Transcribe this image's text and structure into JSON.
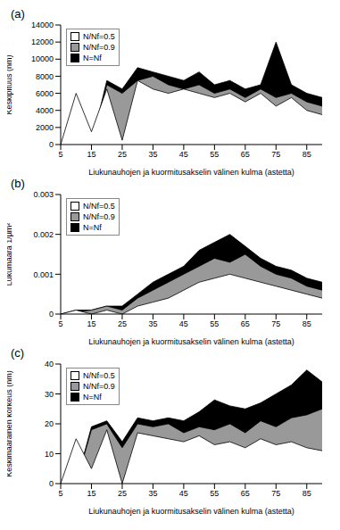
{
  "chart_data": [
    {
      "type": "area",
      "title": "(a)",
      "x_label": "Liukunauhojen  ja kuormitusakselin  välinen kulma (astetta)",
      "y_label": "Keskipituus (nm)",
      "x": [
        5,
        10,
        15,
        20,
        25,
        30,
        35,
        40,
        45,
        50,
        55,
        60,
        65,
        70,
        75,
        80,
        85,
        90
      ],
      "xlim": [
        5,
        90
      ],
      "xticks": [
        5,
        15,
        25,
        35,
        45,
        55,
        65,
        75,
        85
      ],
      "ylim": [
        0,
        14000
      ],
      "yticks": [
        0,
        2000,
        4000,
        6000,
        8000,
        10000,
        12000,
        14000
      ],
      "legend": "top-left",
      "series": [
        {
          "name": "N/Nf=0.5",
          "color": "#ffffff",
          "values": [
            0,
            6000,
            1500,
            6500,
            500,
            7500,
            6500,
            6000,
            6500,
            6000,
            5500,
            6000,
            5000,
            6000,
            4500,
            5500,
            4000,
            3500
          ]
        },
        {
          "name": "N/Nf=0.9",
          "color": "#999999",
          "values": [
            0,
            0,
            0,
            7000,
            6000,
            7500,
            8000,
            7000,
            6500,
            7000,
            6000,
            6500,
            5500,
            6500,
            5500,
            6000,
            5000,
            4500
          ]
        },
        {
          "name": "N=Nf",
          "color": "#000000",
          "values": [
            0,
            0,
            0,
            7500,
            6500,
            9000,
            8500,
            8000,
            7500,
            8500,
            7000,
            7500,
            6500,
            7000,
            12000,
            7000,
            6000,
            5500
          ]
        }
      ]
    },
    {
      "type": "area",
      "title": "(b)",
      "x_label": "Liukunauhojen  ja kuormitusakselin  välinen kulma (astetta)",
      "y_label": "Lukumäärä 1/µm²",
      "x": [
        5,
        10,
        15,
        20,
        25,
        30,
        35,
        40,
        45,
        50,
        55,
        60,
        65,
        70,
        75,
        80,
        85,
        90
      ],
      "xlim": [
        5,
        90
      ],
      "xticks": [
        5,
        15,
        25,
        35,
        45,
        55,
        65,
        75,
        85
      ],
      "ylim": [
        0,
        0.003
      ],
      "yticks": [
        0,
        0.001,
        0.002,
        0.003
      ],
      "legend": "top-left",
      "series": [
        {
          "name": "N/Nf=0.5",
          "color": "#ffffff",
          "values": [
            0,
            0.0001,
            0,
            0.0001,
            0,
            0.0002,
            0.0003,
            0.0004,
            0.0006,
            0.0008,
            0.0009,
            0.001,
            0.0009,
            0.0008,
            0.0007,
            0.0006,
            0.0005,
            0.0004
          ]
        },
        {
          "name": "N/Nf=0.9",
          "color": "#999999",
          "values": [
            0,
            5e-05,
            0.0001,
            0.0002,
            0.0001,
            0.0004,
            0.0006,
            0.0008,
            0.001,
            0.0012,
            0.0014,
            0.0013,
            0.0015,
            0.0012,
            0.001,
            0.0009,
            0.0007,
            0.0006
          ]
        },
        {
          "name": "N=Nf",
          "color": "#000000",
          "values": [
            0,
            0.0001,
            0.0001,
            0.0002,
            0.0002,
            0.0005,
            0.0008,
            0.001,
            0.0012,
            0.0016,
            0.0018,
            0.002,
            0.0017,
            0.0014,
            0.0012,
            0.0011,
            0.0009,
            0.0008
          ]
        }
      ]
    },
    {
      "type": "area",
      "title": "(c)",
      "x_label": "Liukunauhojen  ja kuormitusakselin  välinen kulma (astetta)",
      "y_label": "Keskimääräinen korkeus (nm)",
      "x": [
        5,
        10,
        15,
        20,
        25,
        30,
        35,
        40,
        45,
        50,
        55,
        60,
        65,
        70,
        75,
        80,
        85,
        90
      ],
      "xlim": [
        5,
        90
      ],
      "xticks": [
        5,
        15,
        25,
        35,
        45,
        55,
        65,
        75,
        85
      ],
      "ylim": [
        0,
        40
      ],
      "yticks": [
        0,
        10,
        20,
        30,
        40
      ],
      "legend": "top-left",
      "series": [
        {
          "name": "N/Nf=0.5",
          "color": "#ffffff",
          "values": [
            0,
            15,
            5,
            18,
            0,
            17,
            16,
            15,
            14,
            16,
            13,
            14,
            12,
            15,
            13,
            14,
            12,
            11
          ]
        },
        {
          "name": "N/Nf=0.9",
          "color": "#999999",
          "values": [
            0,
            0,
            18,
            20,
            12,
            20,
            19,
            20,
            17,
            19,
            18,
            20,
            17,
            21,
            19,
            22,
            23,
            25
          ]
        },
        {
          "name": "N=Nf",
          "color": "#000000",
          "values": [
            0,
            0,
            19,
            21,
            14,
            22,
            21,
            22,
            21,
            24,
            28,
            26,
            25,
            27,
            30,
            33,
            38,
            34
          ]
        }
      ]
    }
  ]
}
